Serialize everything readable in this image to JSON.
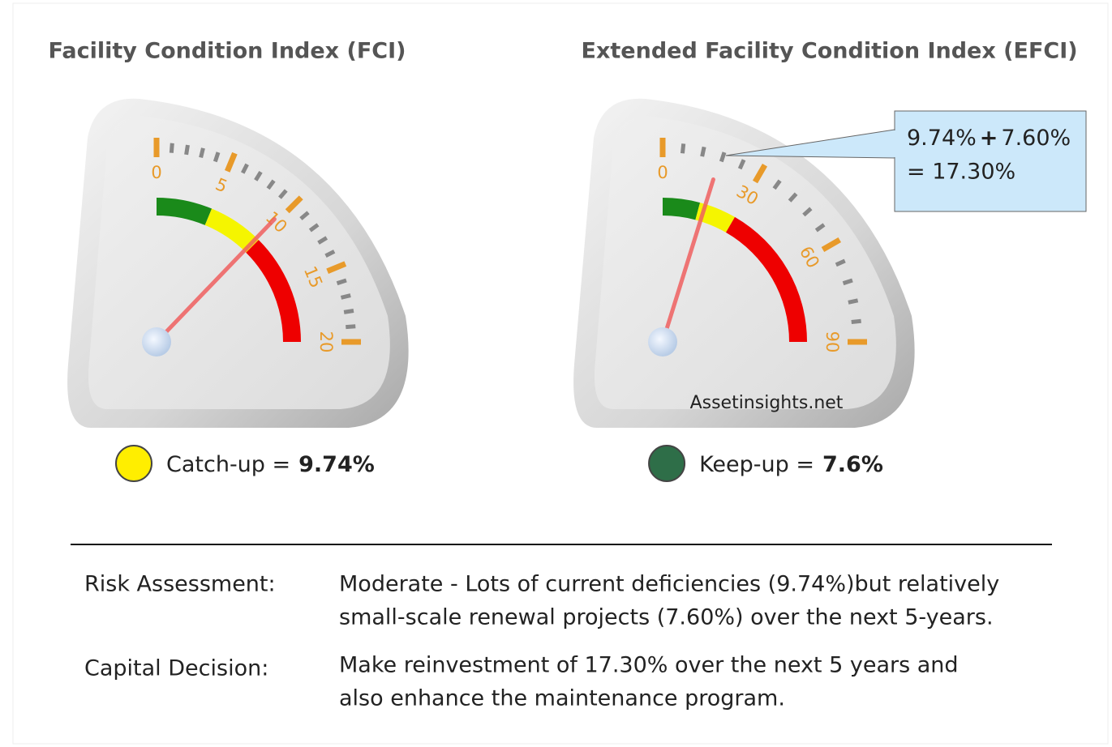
{
  "chart_data": [
    {
      "type": "gauge",
      "title": "Facility Condition Index (FCI)",
      "xlim": [
        0,
        20
      ],
      "xticks": [
        0,
        5,
        10,
        15,
        20
      ],
      "value": 9.74,
      "bands": [
        {
          "from": 0,
          "to": 5,
          "color": "#1a8a1a"
        },
        {
          "from": 5,
          "to": 10,
          "color": "#f5f500"
        },
        {
          "from": 10,
          "to": 20,
          "color": "#ee0000"
        }
      ],
      "status": {
        "label": "Catch-up =",
        "value": "9.74%",
        "color": "#ffee00"
      }
    },
    {
      "type": "gauge",
      "title": "Extended Facility Condition Index (EFCI)",
      "xlim": [
        0,
        90
      ],
      "xticks": [
        0,
        30,
        60,
        90
      ],
      "value": 17.3,
      "bands": [
        {
          "from": 0,
          "to": 15,
          "color": "#1a8a1a"
        },
        {
          "from": 15,
          "to": 30,
          "color": "#f5f500"
        },
        {
          "from": 30,
          "to": 90,
          "color": "#ee0000"
        }
      ],
      "status": {
        "label": "Keep-up =",
        "value": "7.6%",
        "color": "#2e6e48"
      }
    }
  ],
  "callout": {
    "line1": [
      "9.74%",
      "+",
      "7.60%"
    ],
    "line2": "= 17.30%"
  },
  "watermark": "Assetinsights.net",
  "assessment": [
    {
      "label": "Risk Assessment:",
      "lines": [
        "Moderate - Lots of current deficiencies (9.74%)but relatively",
        "small-scale renewal projects (7.60%) over the next 5-years."
      ]
    },
    {
      "label": "Capital Decision:",
      "lines": [
        "Make reinvestment of 17.30% over the next 5 years and",
        "also enhance the maintenance program."
      ]
    }
  ]
}
